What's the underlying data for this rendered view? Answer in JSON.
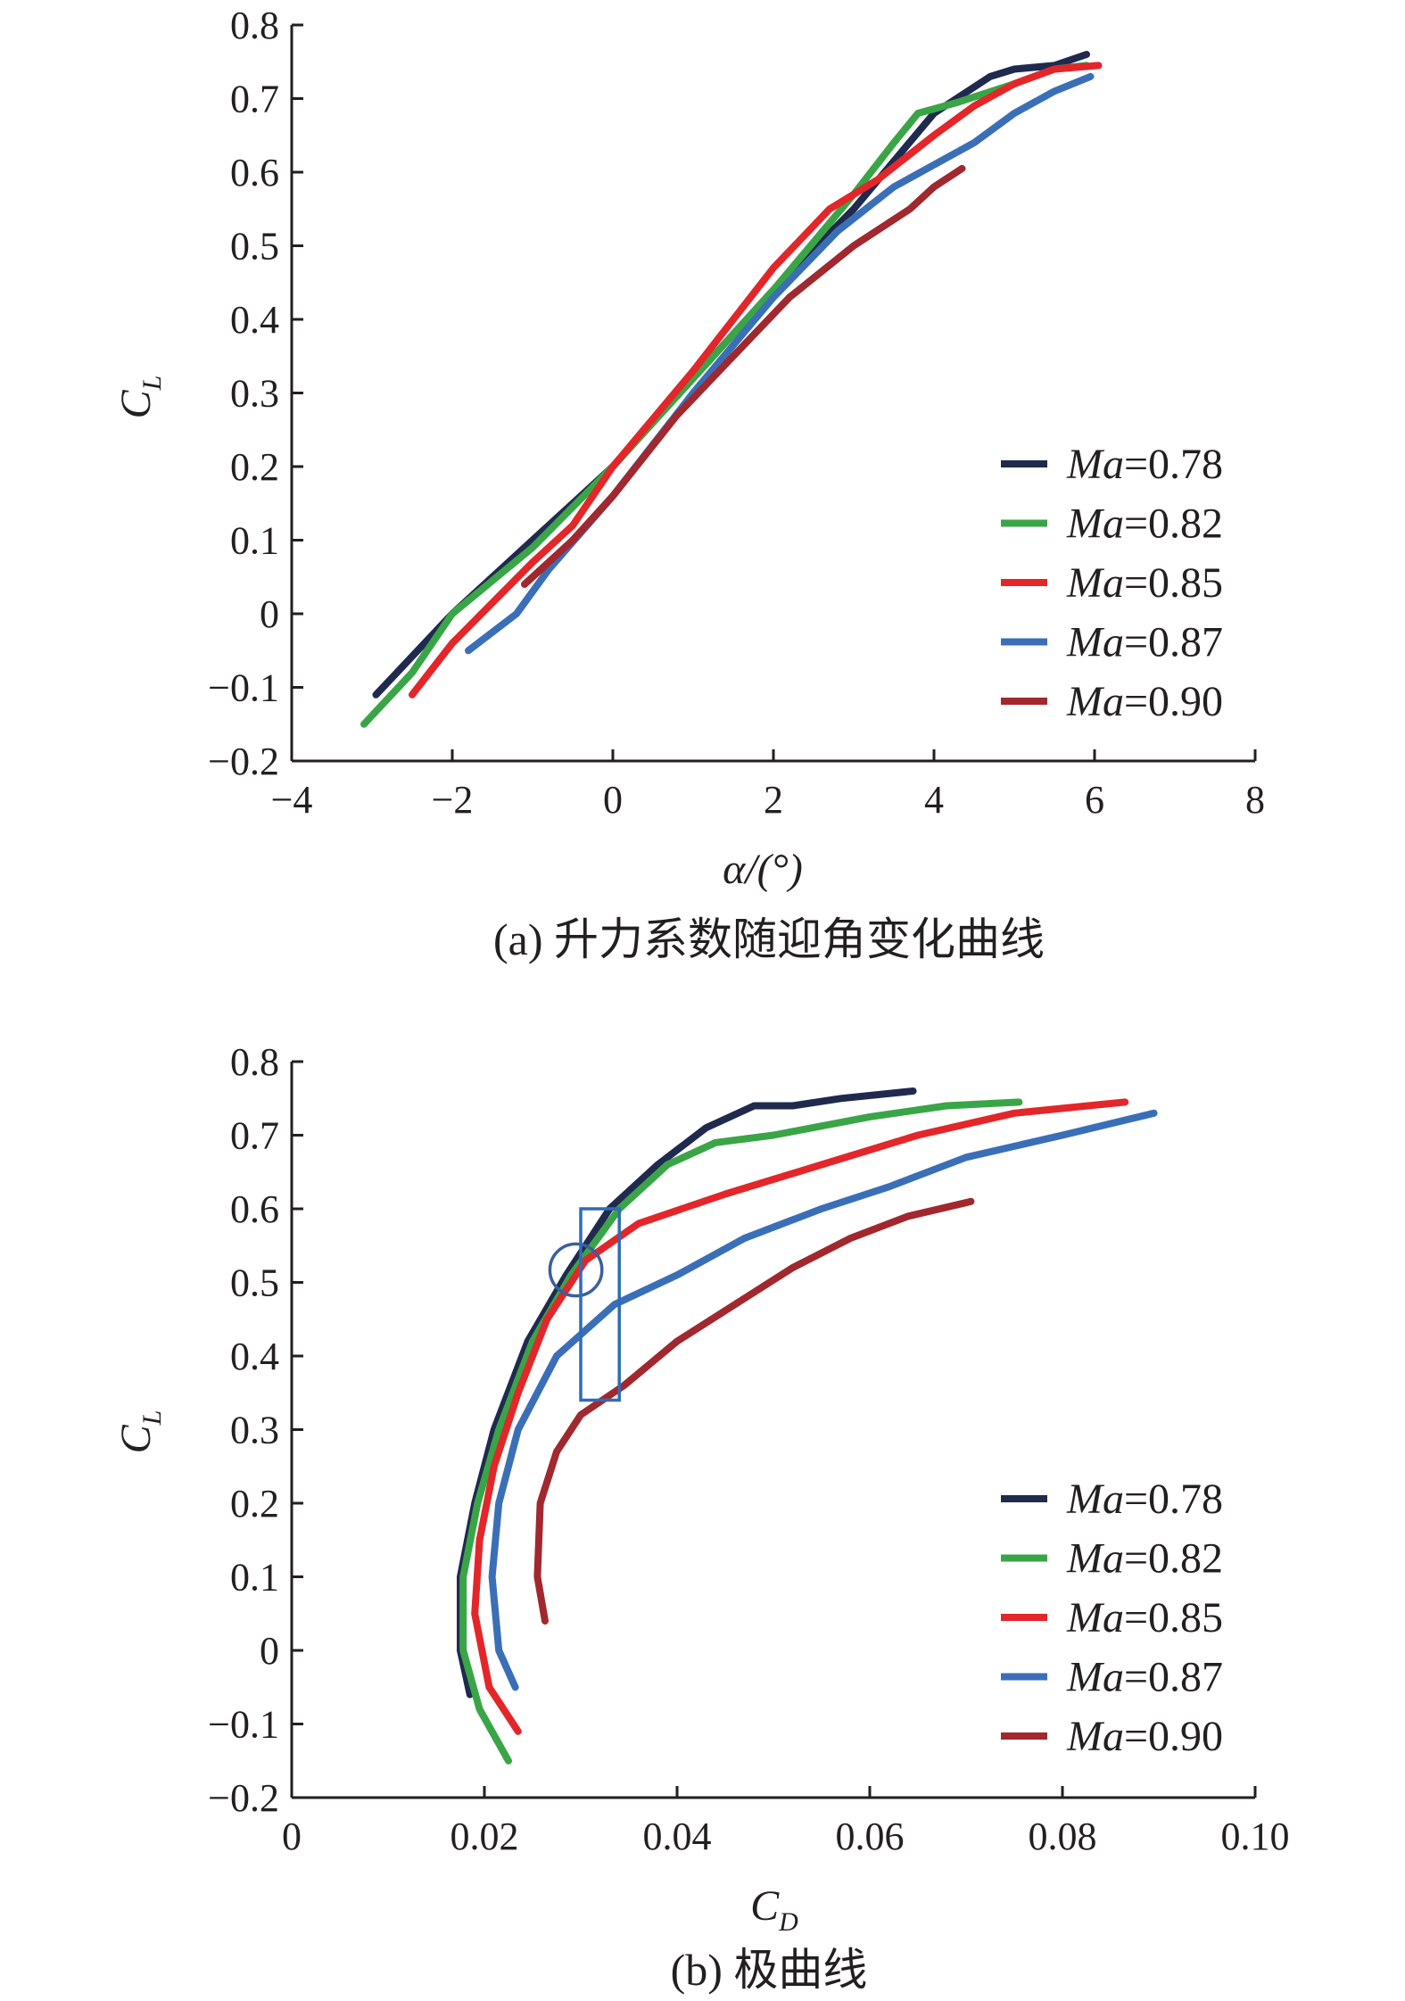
{
  "chart_data": [
    {
      "type": "line",
      "caption": "(a) 升力系数随迎角变化曲线",
      "xlabel": "α/(°)",
      "ylabel": {
        "main": "C",
        "sub": "L"
      },
      "xlim": [
        -4,
        8
      ],
      "ylim": [
        -0.2,
        0.8
      ],
      "xticks": [
        "−4",
        "−2",
        "0",
        "2",
        "4",
        "6",
        "8"
      ],
      "yticks": [
        "−0.2",
        "−0.1",
        "0",
        "0.1",
        "0.2",
        "0.3",
        "0.4",
        "0.5",
        "0.6",
        "0.7",
        "0.8"
      ],
      "legend_position": "lower-right",
      "series": [
        {
          "name": "Ma=0.78",
          "legend_italic": "Ma",
          "legend_value": "=0.78",
          "color": "#1f2a4e",
          "points": [
            [
              -2.95,
              -0.11
            ],
            [
              -2.0,
              0.0
            ],
            [
              -1.0,
              0.1
            ],
            [
              -0.5,
              0.15
            ],
            [
              0.0,
              0.2
            ],
            [
              1.0,
              0.32
            ],
            [
              2.0,
              0.44
            ],
            [
              3.0,
              0.55
            ],
            [
              4.0,
              0.68
            ],
            [
              4.7,
              0.73
            ],
            [
              5.0,
              0.74
            ],
            [
              5.5,
              0.745
            ],
            [
              5.9,
              0.76
            ]
          ]
        },
        {
          "name": "Ma=0.82",
          "legend_italic": "Ma",
          "legend_value": "=0.82",
          "color": "#3aa547",
          "points": [
            [
              -3.1,
              -0.15
            ],
            [
              -2.5,
              -0.08
            ],
            [
              -2.0,
              0.0
            ],
            [
              -1.0,
              0.09
            ],
            [
              0.0,
              0.2
            ],
            [
              1.0,
              0.32
            ],
            [
              2.0,
              0.44
            ],
            [
              3.0,
              0.57
            ],
            [
              3.5,
              0.64
            ],
            [
              3.8,
              0.68
            ],
            [
              4.3,
              0.695
            ],
            [
              5.0,
              0.72
            ],
            [
              5.5,
              0.74
            ],
            [
              5.9,
              0.745
            ]
          ]
        },
        {
          "name": "Ma=0.85",
          "legend_italic": "Ma",
          "legend_value": "=0.85",
          "color": "#e3262a",
          "points": [
            [
              -2.5,
              -0.11
            ],
            [
              -2.0,
              -0.04
            ],
            [
              -1.0,
              0.07
            ],
            [
              -0.5,
              0.12
            ],
            [
              0.0,
              0.2
            ],
            [
              1.0,
              0.33
            ],
            [
              2.0,
              0.47
            ],
            [
              2.7,
              0.55
            ],
            [
              3.3,
              0.59
            ],
            [
              4.0,
              0.65
            ],
            [
              4.5,
              0.69
            ],
            [
              5.0,
              0.72
            ],
            [
              5.5,
              0.74
            ],
            [
              6.05,
              0.745
            ]
          ]
        },
        {
          "name": "Ma=0.87",
          "legend_italic": "Ma",
          "legend_value": "=0.87",
          "color": "#3a6fb8",
          "points": [
            [
              -1.8,
              -0.05
            ],
            [
              -1.2,
              0.0
            ],
            [
              -0.8,
              0.06
            ],
            [
              0.0,
              0.16
            ],
            [
              1.0,
              0.3
            ],
            [
              2.0,
              0.43
            ],
            [
              2.8,
              0.52
            ],
            [
              3.5,
              0.58
            ],
            [
              4.0,
              0.61
            ],
            [
              4.5,
              0.64
            ],
            [
              5.0,
              0.68
            ],
            [
              5.5,
              0.71
            ],
            [
              5.95,
              0.73
            ]
          ]
        },
        {
          "name": "Ma=0.90",
          "legend_italic": "Ma",
          "legend_value": "=0.90",
          "color": "#a1282e",
          "points": [
            [
              -1.1,
              0.04
            ],
            [
              -0.5,
              0.1
            ],
            [
              0.0,
              0.16
            ],
            [
              0.8,
              0.27
            ],
            [
              1.5,
              0.35
            ],
            [
              2.2,
              0.43
            ],
            [
              3.0,
              0.5
            ],
            [
              3.7,
              0.55
            ],
            [
              4.0,
              0.58
            ],
            [
              4.35,
              0.605
            ]
          ]
        }
      ]
    },
    {
      "type": "line",
      "caption": "(b) 极曲线",
      "xlabel": {
        "main": "C",
        "sub": "D"
      },
      "ylabel": {
        "main": "C",
        "sub": "L"
      },
      "xlim": [
        0,
        0.1
      ],
      "ylim": [
        -0.2,
        0.8
      ],
      "xticks": [
        "0",
        "0.02",
        "0.04",
        "0.06",
        "0.08",
        "0.10"
      ],
      "yticks": [
        "−0.2",
        "−0.1",
        "0",
        "0.1",
        "0.2",
        "0.3",
        "0.4",
        "0.5",
        "0.6",
        "0.7",
        "0.8"
      ],
      "legend_position": "lower-right",
      "annotations": {
        "circle": {
          "cx": 0.0295,
          "cy": 0.517,
          "r_cd": 0.0027
        },
        "rectangle": {
          "x0": 0.03,
          "x1": 0.034,
          "y0": 0.34,
          "y1": 0.6
        }
      },
      "series": [
        {
          "name": "Ma=0.78",
          "legend_italic": "Ma",
          "legend_value": "=0.78",
          "color": "#1f2a4e",
          "points": [
            [
              0.0185,
              -0.06
            ],
            [
              0.0175,
              0.0
            ],
            [
              0.0175,
              0.1
            ],
            [
              0.019,
              0.2
            ],
            [
              0.021,
              0.3
            ],
            [
              0.0245,
              0.42
            ],
            [
              0.0285,
              0.51
            ],
            [
              0.033,
              0.6
            ],
            [
              0.038,
              0.66
            ],
            [
              0.043,
              0.71
            ],
            [
              0.048,
              0.74
            ],
            [
              0.052,
              0.74
            ],
            [
              0.057,
              0.75
            ],
            [
              0.0645,
              0.76
            ]
          ]
        },
        {
          "name": "Ma=0.82",
          "legend_italic": "Ma",
          "legend_value": "=0.82",
          "color": "#3aa547",
          "points": [
            [
              0.0225,
              -0.15
            ],
            [
              0.0195,
              -0.08
            ],
            [
              0.0178,
              0.0
            ],
            [
              0.0178,
              0.1
            ],
            [
              0.0193,
              0.2
            ],
            [
              0.0215,
              0.3
            ],
            [
              0.025,
              0.42
            ],
            [
              0.029,
              0.51
            ],
            [
              0.034,
              0.6
            ],
            [
              0.039,
              0.66
            ],
            [
              0.044,
              0.69
            ],
            [
              0.05,
              0.7
            ],
            [
              0.06,
              0.725
            ],
            [
              0.068,
              0.74
            ],
            [
              0.0755,
              0.745
            ]
          ]
        },
        {
          "name": "Ma=0.85",
          "legend_italic": "Ma",
          "legend_value": "=0.85",
          "color": "#e3262a",
          "points": [
            [
              0.0235,
              -0.11
            ],
            [
              0.0205,
              -0.05
            ],
            [
              0.019,
              0.05
            ],
            [
              0.0195,
              0.15
            ],
            [
              0.021,
              0.25
            ],
            [
              0.0235,
              0.35
            ],
            [
              0.0265,
              0.45
            ],
            [
              0.0305,
              0.53
            ],
            [
              0.036,
              0.58
            ],
            [
              0.045,
              0.62
            ],
            [
              0.055,
              0.66
            ],
            [
              0.065,
              0.7
            ],
            [
              0.075,
              0.73
            ],
            [
              0.0865,
              0.745
            ]
          ]
        },
        {
          "name": "Ma=0.87",
          "legend_italic": "Ma",
          "legend_value": "=0.87",
          "color": "#3a6fb8",
          "points": [
            [
              0.0232,
              -0.05
            ],
            [
              0.0215,
              0.0
            ],
            [
              0.0208,
              0.1
            ],
            [
              0.0215,
              0.2
            ],
            [
              0.0235,
              0.3
            ],
            [
              0.0275,
              0.4
            ],
            [
              0.0335,
              0.47
            ],
            [
              0.04,
              0.51
            ],
            [
              0.047,
              0.56
            ],
            [
              0.055,
              0.6
            ],
            [
              0.062,
              0.63
            ],
            [
              0.07,
              0.67
            ],
            [
              0.08,
              0.7
            ],
            [
              0.0895,
              0.73
            ]
          ]
        },
        {
          "name": "Ma=0.90",
          "legend_italic": "Ma",
          "legend_value": "=0.90",
          "color": "#a1282e",
          "points": [
            [
              0.0263,
              0.04
            ],
            [
              0.0255,
              0.1
            ],
            [
              0.0258,
              0.2
            ],
            [
              0.0275,
              0.27
            ],
            [
              0.03,
              0.32
            ],
            [
              0.0345,
              0.36
            ],
            [
              0.04,
              0.42
            ],
            [
              0.046,
              0.47
            ],
            [
              0.052,
              0.52
            ],
            [
              0.058,
              0.56
            ],
            [
              0.064,
              0.59
            ],
            [
              0.0705,
              0.61
            ]
          ]
        }
      ]
    }
  ]
}
